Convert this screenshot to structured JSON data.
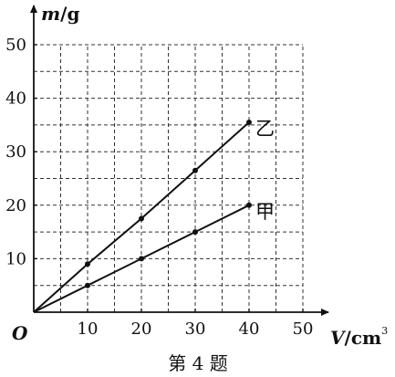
{
  "chart_data": {
    "type": "line",
    "title": "",
    "caption": "第 4 题",
    "origin_label": "O",
    "xlabel": {
      "name": "V",
      "unit": "/cm",
      "unit_exp": "3"
    },
    "ylabel": {
      "name": "m",
      "unit": "/g"
    },
    "xlim": [
      0,
      50
    ],
    "ylim": [
      0,
      50
    ],
    "x_ticks": [
      10,
      20,
      30,
      40,
      50
    ],
    "y_ticks": [
      10,
      20,
      30,
      40,
      50
    ],
    "grid": "dashed, step 5",
    "series": [
      {
        "name": "甲",
        "x": [
          0,
          10,
          20,
          30,
          40
        ],
        "y": [
          0,
          5,
          10,
          15,
          20
        ]
      },
      {
        "name": "乙",
        "x": [
          0,
          10,
          20,
          30,
          40
        ],
        "y": [
          0,
          9,
          17.5,
          26.5,
          35.5
        ]
      }
    ],
    "colors": {
      "ink": "#111111",
      "grid": "#333333"
    }
  }
}
